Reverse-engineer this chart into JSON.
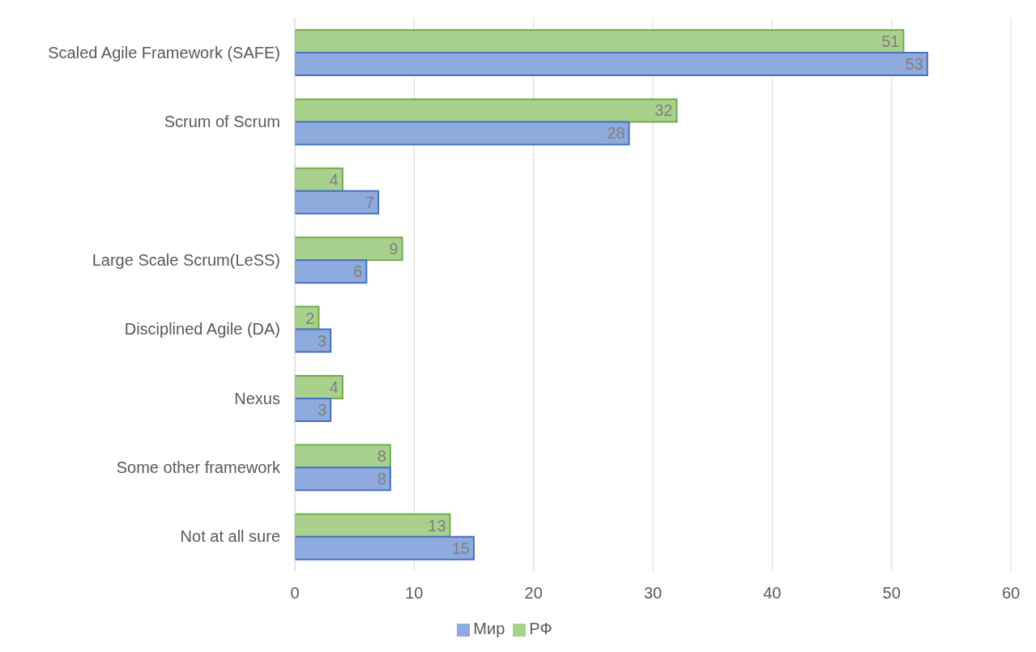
{
  "chart_data": {
    "type": "bar",
    "orientation": "horizontal",
    "categories": [
      "Scaled Agile Framework (SAFE)",
      "Scrum  of Scrum",
      null,
      "Large Scale Scrum(LeSS)",
      "Disciplined Agile (DA)",
      "Nexus",
      "Some other framework",
      "Not at all sure"
    ],
    "series": [
      {
        "name": "РФ",
        "color": "#a9d18e",
        "values": [
          51,
          32,
          4,
          9,
          2,
          4,
          8,
          13
        ]
      },
      {
        "name": "Мир",
        "color": "#8faadc",
        "values": [
          53,
          28,
          7,
          6,
          3,
          3,
          8,
          15
        ]
      }
    ],
    "xlim": [
      0,
      60
    ],
    "xticks": [
      0,
      10,
      20,
      30,
      40,
      50,
      60
    ],
    "grid": "x",
    "legend": "bottom",
    "data_labels": true
  }
}
